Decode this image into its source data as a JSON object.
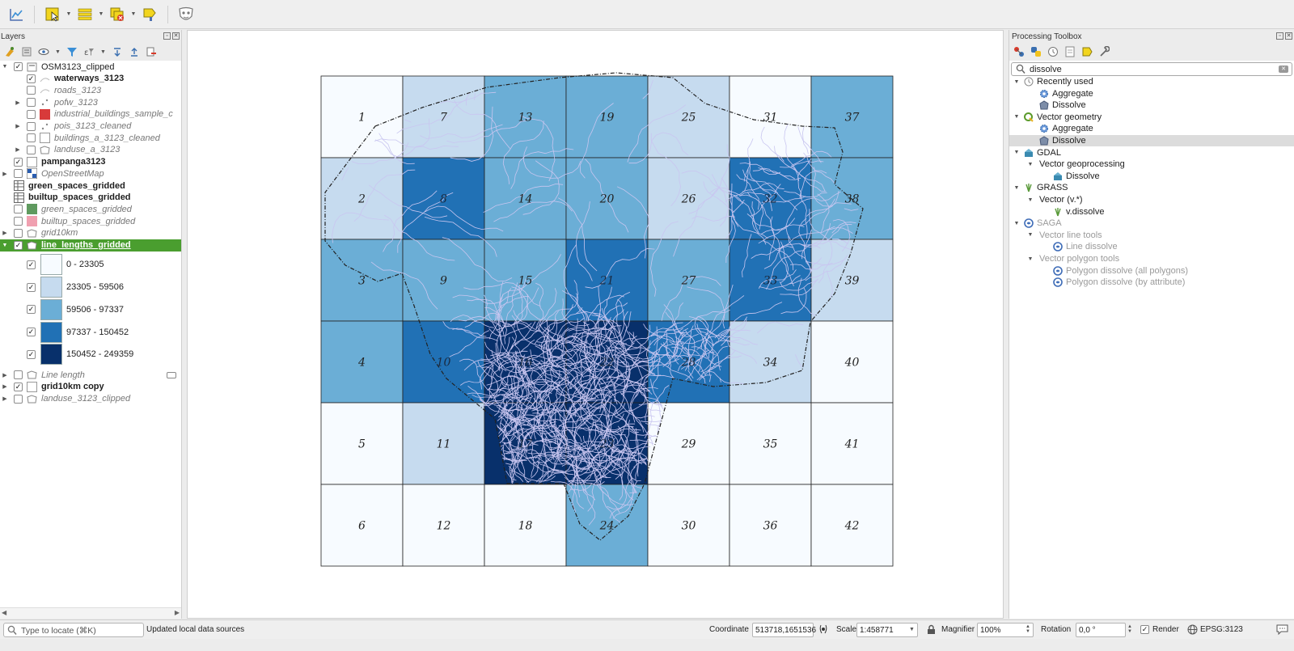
{
  "toolbar": {
    "icons": [
      "statistics-icon",
      "select-features-icon",
      "attribute-table-icon",
      "deselect-icon",
      "label-icon",
      "plugin-mask-icon"
    ]
  },
  "layers_panel": {
    "title": "Layers",
    "items": [
      {
        "name": "OSM3123_clipped",
        "checked": true,
        "style": "normal",
        "expand": "open",
        "indent": 0
      },
      {
        "name": "waterways_3123",
        "checked": true,
        "style": "bold",
        "indent": 1
      },
      {
        "name": "roads_3123",
        "checked": false,
        "style": "italic",
        "indent": 1
      },
      {
        "name": "pofw_3123",
        "checked": false,
        "style": "italic",
        "expand": "closed",
        "indent": 1
      },
      {
        "name": "industrial_buildings_sample_c",
        "checked": false,
        "style": "italic",
        "indent": 1
      },
      {
        "name": "pois_3123_cleaned",
        "checked": false,
        "style": "italic",
        "expand": "closed",
        "indent": 1
      },
      {
        "name": "buildings_a_3123_cleaned",
        "checked": false,
        "style": "italic",
        "indent": 1
      },
      {
        "name": "landuse_a_3123",
        "checked": false,
        "style": "italic",
        "expand": "closed",
        "indent": 1
      },
      {
        "name": "pampanga3123",
        "checked": true,
        "style": "bold",
        "indent": 0
      },
      {
        "name": "OpenStreetMap",
        "checked": false,
        "style": "italic",
        "expand": "closed",
        "indent": 0
      },
      {
        "name": "green_spaces_gridded",
        "checked": null,
        "style": "bold",
        "indent": 0
      },
      {
        "name": "builtup_spaces_gridded",
        "checked": null,
        "style": "bold",
        "indent": 0
      },
      {
        "name": "green_spaces_gridded",
        "checked": false,
        "style": "italic",
        "indent": 0
      },
      {
        "name": "builtup_spaces_gridded",
        "checked": false,
        "style": "italic",
        "indent": 0
      },
      {
        "name": "grid10km",
        "checked": false,
        "style": "italic",
        "expand": "closed",
        "indent": 0
      },
      {
        "name": "line_lengths_gridded",
        "checked": true,
        "style": "selected",
        "expand": "open",
        "indent": 0
      }
    ],
    "legend": [
      {
        "label": "0 - 23305",
        "color": "#f7fbff"
      },
      {
        "label": "23305 - 59506",
        "color": "#c6dbef"
      },
      {
        "label": "59506 - 97337",
        "color": "#6baed6"
      },
      {
        "label": "97337 - 150452",
        "color": "#2171b5"
      },
      {
        "label": "150452 - 249359",
        "color": "#08306b"
      }
    ],
    "bottom_items": [
      {
        "name": "Line length",
        "checked": false,
        "style": "italic",
        "expand": "closed"
      },
      {
        "name": "grid10km copy",
        "checked": true,
        "style": "bold",
        "expand": "closed"
      },
      {
        "name": "landuse_3123_clipped",
        "checked": false,
        "style": "italic",
        "expand": "closed"
      }
    ]
  },
  "map": {
    "grid_classes": [
      0,
      1,
      2,
      2,
      0,
      0,
      1,
      3,
      2,
      3,
      1,
      0,
      2,
      2,
      2,
      4,
      4,
      0,
      2,
      2,
      3,
      4,
      4,
      2,
      1,
      1,
      2,
      3,
      0,
      0,
      0,
      3,
      3,
      1,
      0,
      0,
      2,
      2,
      1,
      0,
      0,
      0
    ],
    "colors": [
      "#f7fbff",
      "#c6dbef",
      "#6baed6",
      "#2171b5",
      "#08306b"
    ],
    "cell_labels": [
      "1",
      "2",
      "3",
      "4",
      "5",
      "6",
      "7",
      "8",
      "9",
      "10",
      "11",
      "12",
      "13",
      "14",
      "15",
      "16",
      "17",
      "18",
      "19",
      "20",
      "21",
      "22",
      "23",
      "24",
      "25",
      "26",
      "27",
      "28",
      "29",
      "30",
      "31",
      "32",
      "33",
      "34",
      "35",
      "36",
      "37",
      "38",
      "39",
      "40",
      "41",
      "42"
    ]
  },
  "processing": {
    "title": "Processing Toolbox",
    "search_value": "dissolve",
    "tree": [
      {
        "label": "Recently used",
        "level": 0,
        "icon": "clock-icon",
        "expand": "open"
      },
      {
        "label": "Aggregate",
        "level": 1,
        "icon": "gear-icon"
      },
      {
        "label": "Dissolve",
        "level": 1,
        "icon": "dissolve-icon"
      },
      {
        "label": "Vector geometry",
        "level": 0,
        "icon": "qgis-icon",
        "expand": "open"
      },
      {
        "label": "Aggregate",
        "level": 1,
        "icon": "gear-icon"
      },
      {
        "label": "Dissolve",
        "level": 1,
        "icon": "dissolve-icon",
        "selected": true
      },
      {
        "label": "GDAL",
        "level": 0,
        "icon": "gdal-icon",
        "expand": "open"
      },
      {
        "label": "Vector geoprocessing",
        "level": 1,
        "expand": "open"
      },
      {
        "label": "Dissolve",
        "level": 2,
        "icon": "gdal-icon"
      },
      {
        "label": "GRASS",
        "level": 0,
        "icon": "grass-icon",
        "expand": "open"
      },
      {
        "label": "Vector (v.*)",
        "level": 1,
        "expand": "open"
      },
      {
        "label": "v.dissolve",
        "level": 2,
        "icon": "grass-icon"
      },
      {
        "label": "SAGA",
        "level": 0,
        "icon": "saga-icon",
        "expand": "open",
        "disabled": true
      },
      {
        "label": "Vector line tools",
        "level": 1,
        "expand": "open",
        "disabled": true
      },
      {
        "label": "Line dissolve",
        "level": 2,
        "icon": "saga-icon",
        "disabled": true
      },
      {
        "label": "Vector polygon tools",
        "level": 1,
        "expand": "open",
        "disabled": true
      },
      {
        "label": "Polygon dissolve (all polygons)",
        "level": 2,
        "icon": "saga-icon",
        "disabled": true
      },
      {
        "label": "Polygon dissolve (by attribute)",
        "level": 2,
        "icon": "saga-icon",
        "disabled": true
      }
    ]
  },
  "statusbar": {
    "locate_placeholder": "Type to locate (⌘K)",
    "message": "Updated local data sources",
    "coordinate_label": "Coordinate",
    "coordinate_value": "513718,1651536",
    "scale_label": "Scale",
    "scale_value": "1:458771",
    "magnifier_label": "Magnifier",
    "magnifier_value": "100%",
    "rotation_label": "Rotation",
    "rotation_value": "0,0 °",
    "render_label": "Render",
    "render_checked": true,
    "crs": "EPSG:3123"
  }
}
